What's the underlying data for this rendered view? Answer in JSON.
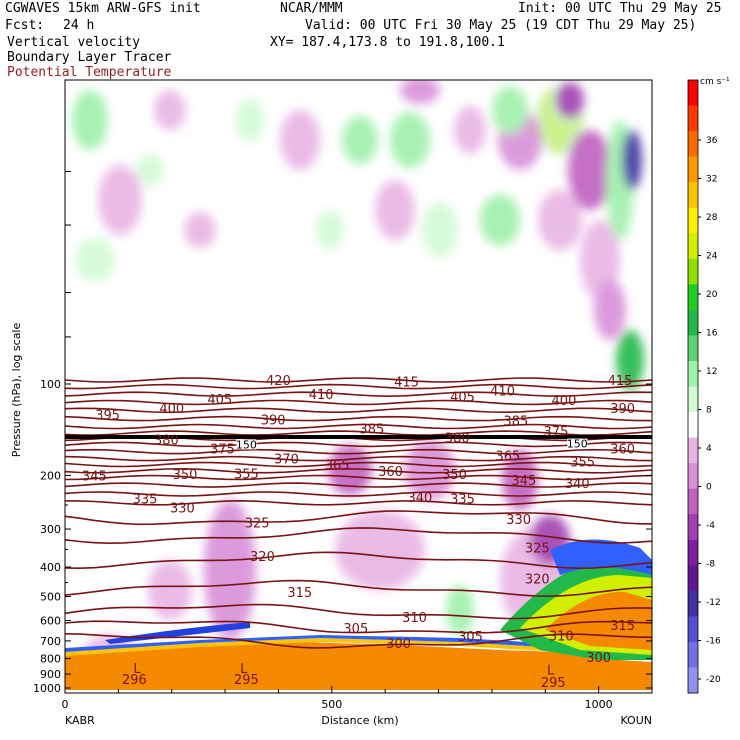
{
  "header": {
    "model": "CGWAVES 15km ARW-GFS init",
    "center": "NCAR/MMM",
    "init": "Init: 00 UTC Thu 29 May 25",
    "fcst_label": "Fcst:",
    "fcst_value": "24 h",
    "valid": "Valid: 00 UTC Fri 30 May 25 (19 CDT Thu 29 May 25)",
    "field1": "Vertical velocity",
    "field2": "Boundary Layer Tracer",
    "field3": "Potential Temperature",
    "xy": "XY= 187.4,173.8 to 191.8,100.1"
  },
  "colors": {
    "theta_contour": "#7a1414",
    "tracer": "#f58a00",
    "tropopause_line": "#000000"
  },
  "chart_data": {
    "type": "cross-section",
    "ylabel": "Pressure (hPa), log scale",
    "xlabel": "Distance (km)",
    "y_scale": "log",
    "y_ticks": [
      100,
      200,
      300,
      400,
      500,
      600,
      700,
      800,
      900,
      1000
    ],
    "x_ticks": [
      0,
      500,
      1000
    ],
    "xlim": [
      0,
      1100
    ],
    "left_station": "KABR",
    "right_station": "KOUN",
    "colorbar": {
      "unit": "cm s⁻¹",
      "ticks": [
        "36",
        "32",
        "28",
        "24",
        "20",
        "16",
        "12",
        "8",
        "4",
        "0",
        "-4",
        "-8",
        "-12",
        "-16",
        "-20"
      ],
      "colors": [
        "#ff0000",
        "#ff3a00",
        "#ff6a00",
        "#ff9a00",
        "#ffc400",
        "#ffee00",
        "#d0f000",
        "#8ee000",
        "#22cc22",
        "#22b84a",
        "#5fd070",
        "#9ff0aa",
        "#d2fad4",
        "#ffffff",
        "#e8b4e4",
        "#d890d8",
        "#c060c0",
        "#a040b0",
        "#8020a0",
        "#601890",
        "#4030a0",
        "#5050d0",
        "#7070e0",
        "#9090f0"
      ]
    },
    "theta_levels": [
      {
        "value": 420,
        "p": 97
      },
      {
        "value": 415,
        "p": 102
      },
      {
        "value": 410,
        "p": 108
      },
      {
        "value": 405,
        "p": 115
      },
      {
        "value": 400,
        "p": 122
      },
      {
        "value": 395,
        "p": 130
      },
      {
        "value": 390,
        "p": 138
      },
      {
        "value": 385,
        "p": 145
      },
      {
        "value": 380,
        "p": 151
      },
      {
        "value": 375,
        "p": 158
      },
      {
        "value": 370,
        "p": 167
      },
      {
        "value": 365,
        "p": 176
      },
      {
        "value": 360,
        "p": 184
      },
      {
        "value": 355,
        "p": 193
      },
      {
        "value": 350,
        "p": 203
      },
      {
        "value": 345,
        "p": 215
      },
      {
        "value": 340,
        "p": 230
      },
      {
        "value": 335,
        "p": 246
      },
      {
        "value": 330,
        "p": 275
      },
      {
        "value": 325,
        "p": 315
      },
      {
        "value": 320,
        "p": 380
      },
      {
        "value": 315,
        "p": 470
      },
      {
        "value": 310,
        "p": 560
      },
      {
        "value": 305,
        "p": 630
      },
      {
        "value": 300,
        "p": 700
      },
      {
        "value": 296,
        "p": 1000
      },
      {
        "value": 295,
        "p": 1000
      }
    ],
    "theta_labels": [
      {
        "text": "420",
        "x": 400,
        "p": 97
      },
      {
        "text": "415",
        "x": 640,
        "p": 98
      },
      {
        "text": "415",
        "x": 1040,
        "p": 97
      },
      {
        "text": "410",
        "x": 480,
        "p": 108
      },
      {
        "text": "410",
        "x": 820,
        "p": 105
      },
      {
        "text": "405",
        "x": 290,
        "p": 112
      },
      {
        "text": "405",
        "x": 745,
        "p": 110
      },
      {
        "text": "400",
        "x": 200,
        "p": 120
      },
      {
        "text": "400",
        "x": 935,
        "p": 113
      },
      {
        "text": "395",
        "x": 80,
        "p": 126
      },
      {
        "text": "390",
        "x": 390,
        "p": 131
      },
      {
        "text": "390",
        "x": 1045,
        "p": 120
      },
      {
        "text": "385",
        "x": 575,
        "p": 140
      },
      {
        "text": "385",
        "x": 845,
        "p": 132
      },
      {
        "text": "380",
        "x": 190,
        "p": 152
      },
      {
        "text": "380",
        "x": 735,
        "p": 150
      },
      {
        "text": "375",
        "x": 920,
        "p": 143
      },
      {
        "text": "375",
        "x": 295,
        "p": 163
      },
      {
        "text": "370",
        "x": 415,
        "p": 176
      },
      {
        "text": "365",
        "x": 510,
        "p": 184
      },
      {
        "text": "365",
        "x": 830,
        "p": 172
      },
      {
        "text": "360",
        "x": 610,
        "p": 193
      },
      {
        "text": "360",
        "x": 1045,
        "p": 163
      },
      {
        "text": "355",
        "x": 340,
        "p": 197
      },
      {
        "text": "355",
        "x": 970,
        "p": 180
      },
      {
        "text": "350",
        "x": 225,
        "p": 198
      },
      {
        "text": "350",
        "x": 730,
        "p": 198
      },
      {
        "text": "345",
        "x": 55,
        "p": 200
      },
      {
        "text": "345",
        "x": 860,
        "p": 207
      },
      {
        "text": "340",
        "x": 665,
        "p": 235
      },
      {
        "text": "340",
        "x": 960,
        "p": 212
      },
      {
        "text": "335",
        "x": 150,
        "p": 238
      },
      {
        "text": "335",
        "x": 745,
        "p": 238
      },
      {
        "text": "330",
        "x": 220,
        "p": 255
      },
      {
        "text": "330",
        "x": 850,
        "p": 278
      },
      {
        "text": "325",
        "x": 360,
        "p": 285
      },
      {
        "text": "325",
        "x": 885,
        "p": 345
      },
      {
        "text": "320",
        "x": 370,
        "p": 368
      },
      {
        "text": "320",
        "x": 885,
        "p": 437
      },
      {
        "text": "315",
        "x": 440,
        "p": 484
      },
      {
        "text": "315",
        "x": 1045,
        "p": 620
      },
      {
        "text": "310",
        "x": 655,
        "p": 583
      },
      {
        "text": "310",
        "x": 930,
        "p": 672
      },
      {
        "text": "305",
        "x": 545,
        "p": 635
      },
      {
        "text": "305",
        "x": 760,
        "p": 675
      },
      {
        "text": "300",
        "x": 625,
        "p": 712
      },
      {
        "text": "300",
        "x": 1000,
        "p": 790
      },
      {
        "text": "296",
        "x": 130,
        "p": 935
      },
      {
        "text": "295",
        "x": 340,
        "p": 935
      },
      {
        "text": "295",
        "x": 915,
        "p": 955
      }
    ],
    "low_markers": [
      {
        "text": "L",
        "x": 135,
        "p": 860
      },
      {
        "text": "L",
        "x": 335,
        "p": 860
      },
      {
        "text": "L",
        "x": 910,
        "p": 870
      }
    ],
    "tropopause_marks": [
      {
        "text": "150",
        "x": 340,
        "p": 158
      },
      {
        "text": "150",
        "x": 960,
        "p": 157
      }
    ]
  }
}
